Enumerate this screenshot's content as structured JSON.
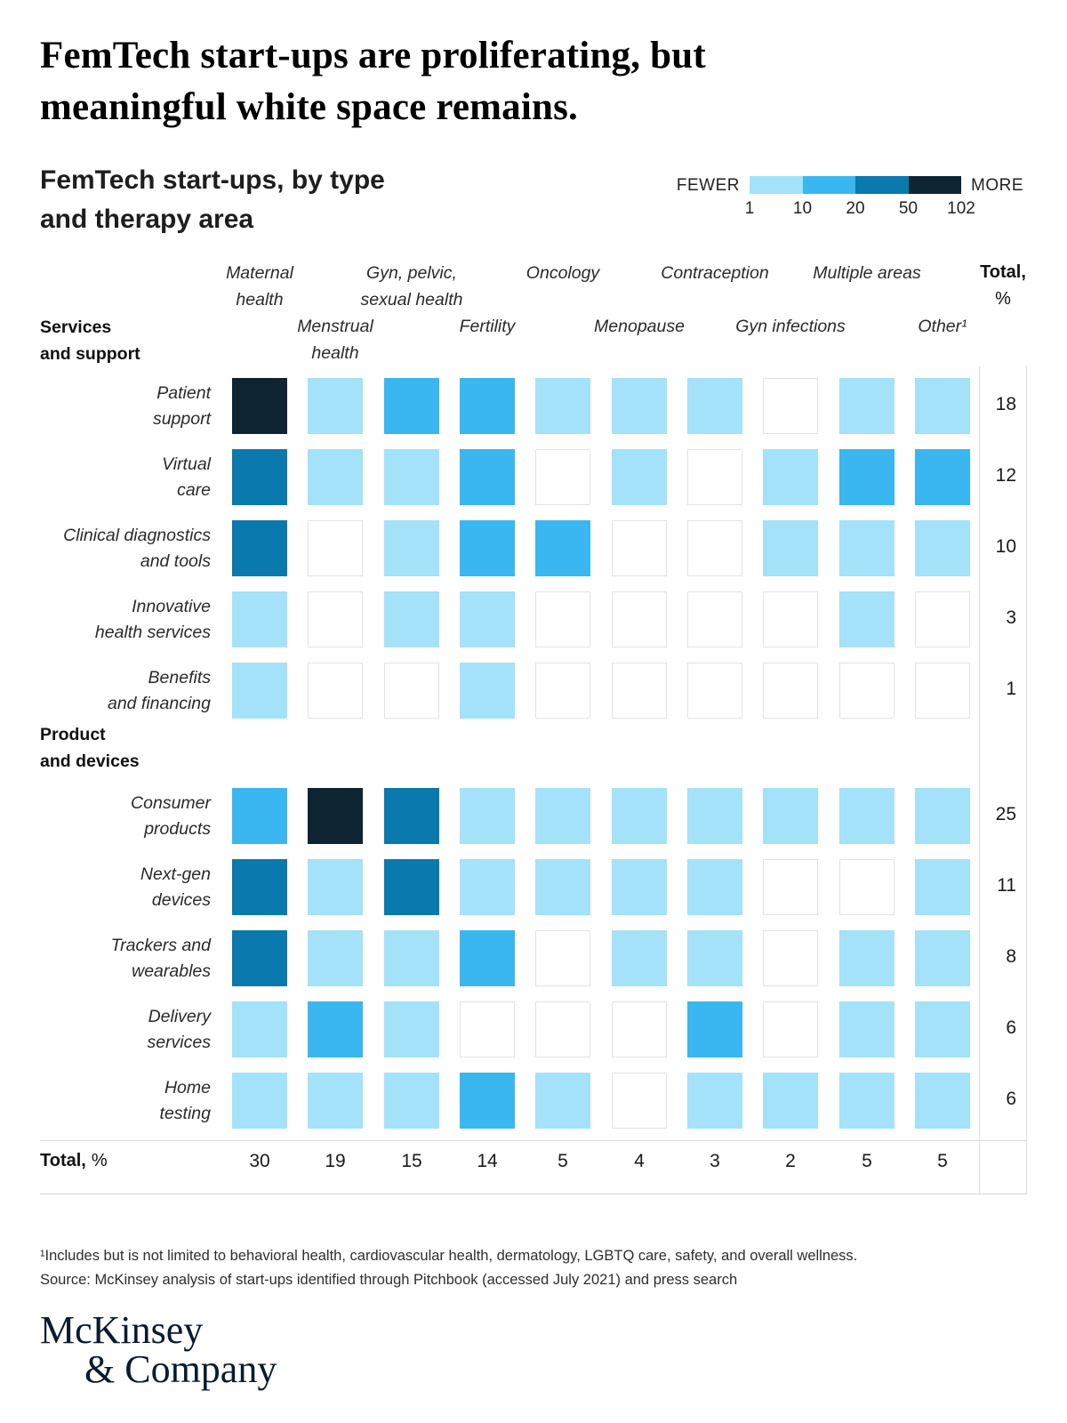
{
  "title": {
    "full": "FemTech start-ups are proliferating, but meaningful white space remains.",
    "line1": "FemTech start-ups are proliferating, but",
    "line2": "meaningful white space remains."
  },
  "subtitle": {
    "full": "FemTech start-ups, by type and therapy area",
    "line1": "FemTech start-ups, by type",
    "line2": "and therapy area"
  },
  "footnote": "¹Includes but is not limited to behavioral health, cardiovascular health, dermatology, LGBTQ care, safety, and overall wellness.",
  "source": "Source: McKinsey analysis of start-ups identified through Pitchbook (accessed July 2021) and press search",
  "logo": {
    "line1": "McKinsey",
    "line2": "& Company"
  },
  "chart_data": {
    "type": "heatmap",
    "title": "FemTech start-ups, by type and therapy area",
    "legend": {
      "fewer": "FEWER",
      "more": "MORE",
      "bin_edges": [
        1,
        10,
        20,
        50,
        102
      ],
      "colors": [
        "#a3e2f8",
        "#3ab7f0",
        "#0a79ae",
        "#0e2433"
      ],
      "empty_color": "#ffffff"
    },
    "level_bins": {
      "0": "none",
      "1": "1-9",
      "2": "10-19",
      "3": "20-49",
      "4": "50-102"
    },
    "columns": [
      {
        "label": "Maternal health",
        "tier": "top",
        "lines": [
          "Maternal",
          "health"
        ]
      },
      {
        "label": "Menstrual health",
        "tier": "bottom",
        "lines": [
          "Menstrual",
          "health"
        ]
      },
      {
        "label": "Gyn, pelvic, sexual health",
        "tier": "top",
        "lines": [
          "Gyn, pelvic,",
          "sexual health"
        ]
      },
      {
        "label": "Fertility",
        "tier": "bottom",
        "lines": [
          "Fertility"
        ]
      },
      {
        "label": "Oncology",
        "tier": "top",
        "lines": [
          "Oncology"
        ]
      },
      {
        "label": "Menopause",
        "tier": "bottom",
        "lines": [
          "Menopause"
        ]
      },
      {
        "label": "Contraception",
        "tier": "top",
        "lines": [
          "Contraception"
        ]
      },
      {
        "label": "Gyn infections",
        "tier": "bottom",
        "lines": [
          "Gyn infections"
        ]
      },
      {
        "label": "Multiple areas",
        "tier": "top",
        "lines": [
          "Multiple areas"
        ]
      },
      {
        "label": "Other¹",
        "tier": "bottom",
        "lines": [
          "Other¹"
        ]
      }
    ],
    "total_header": {
      "line1": "Total,",
      "line2": "%"
    },
    "sections": [
      {
        "label": "Services and support",
        "label_lines": [
          "Services",
          "and support"
        ],
        "rows": [
          {
            "label": "Patient support",
            "label_lines": [
              "Patient",
              "support"
            ],
            "total_pct": 18,
            "levels": [
              4,
              1,
              2,
              2,
              1,
              1,
              1,
              0,
              1,
              1
            ]
          },
          {
            "label": "Virtual care",
            "label_lines": [
              "Virtual",
              "care"
            ],
            "total_pct": 12,
            "levels": [
              3,
              1,
              1,
              2,
              0,
              1,
              0,
              1,
              2,
              2
            ]
          },
          {
            "label": "Clinical diagnostics and tools",
            "label_lines": [
              "Clinical diagnostics",
              "and tools"
            ],
            "total_pct": 10,
            "levels": [
              3,
              0,
              1,
              2,
              2,
              0,
              0,
              1,
              1,
              1
            ]
          },
          {
            "label": "Innovative health services",
            "label_lines": [
              "Innovative",
              "health services"
            ],
            "total_pct": 3,
            "levels": [
              1,
              0,
              1,
              1,
              0,
              0,
              0,
              0,
              1,
              0
            ]
          },
          {
            "label": "Benefits and financing",
            "label_lines": [
              "Benefits",
              "and financing"
            ],
            "total_pct": 1,
            "levels": [
              1,
              0,
              0,
              1,
              0,
              0,
              0,
              0,
              0,
              0
            ]
          }
        ]
      },
      {
        "label": "Product and devices",
        "label_lines": [
          "Product",
          "and devices"
        ],
        "rows": [
          {
            "label": "Consumer products",
            "label_lines": [
              "Consumer",
              "products"
            ],
            "total_pct": 25,
            "levels": [
              2,
              4,
              3,
              1,
              1,
              1,
              1,
              1,
              1,
              1
            ]
          },
          {
            "label": "Next-gen devices",
            "label_lines": [
              "Next-gen",
              "devices"
            ],
            "total_pct": 11,
            "levels": [
              3,
              1,
              3,
              1,
              1,
              1,
              1,
              0,
              0,
              1
            ]
          },
          {
            "label": "Trackers and wearables",
            "label_lines": [
              "Trackers and",
              "wearables"
            ],
            "total_pct": 8,
            "levels": [
              3,
              1,
              1,
              2,
              0,
              1,
              1,
              0,
              1,
              1
            ]
          },
          {
            "label": "Delivery services",
            "label_lines": [
              "Delivery",
              "services"
            ],
            "total_pct": 6,
            "levels": [
              1,
              2,
              1,
              0,
              0,
              0,
              2,
              0,
              1,
              1
            ]
          },
          {
            "label": "Home testing",
            "label_lines": [
              "Home",
              "testing"
            ],
            "total_pct": 6,
            "levels": [
              1,
              1,
              1,
              2,
              1,
              0,
              1,
              1,
              1,
              1
            ]
          }
        ]
      }
    ],
    "column_totals": {
      "label_bold": "Total,",
      "label_unit": "%",
      "values": [
        30,
        19,
        15,
        14,
        5,
        4,
        3,
        2,
        5,
        5
      ]
    }
  }
}
